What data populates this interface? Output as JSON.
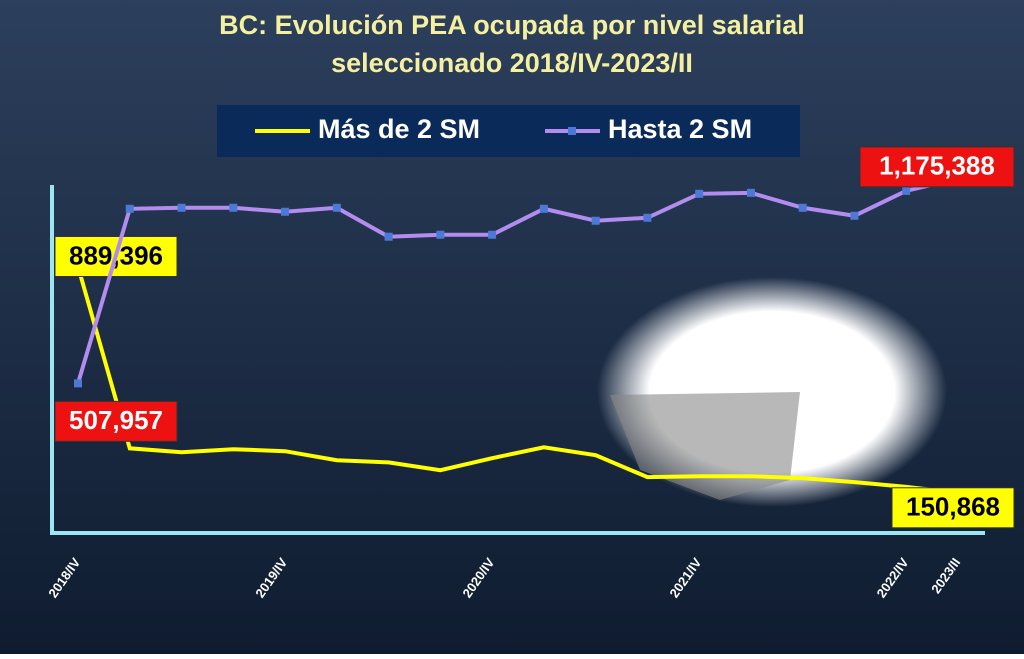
{
  "chart_data": {
    "type": "line",
    "title": "BC: Evolución PEA ocupada por nivel salarial",
    "subtitle": "seleccionado 2018/IV-2023/II",
    "categories": [
      "2018/IV",
      null,
      null,
      null,
      "2019/IV",
      null,
      null,
      null,
      "2020/IV",
      null,
      null,
      null,
      "2021/IV",
      null,
      null,
      null,
      "2022/IV",
      "2023/II"
    ],
    "ylim": [
      0,
      1250000
    ],
    "legend": "top",
    "series": [
      {
        "name": "Más de 2 SM",
        "color": "#ffff00",
        "label_box": "#ffff00",
        "label_text": "#000000",
        "values": [
          889396,
          296000,
          283000,
          293000,
          286500,
          257000,
          250000,
          224600,
          263700,
          299500,
          273500,
          202000,
          205000,
          205000,
          198600,
          185600,
          170000,
          150868
        ],
        "value_labels": [
          "889,396",
          null,
          null,
          null,
          null,
          null,
          null,
          null,
          null,
          null,
          null,
          null,
          null,
          null,
          null,
          null,
          null,
          "150,868"
        ]
      },
      {
        "name": "Hasta 2 SM",
        "color": "#b38cf0",
        "label_box": "#ee1111",
        "label_text": "#ffffff",
        "marker": "#4d79d6",
        "values": [
          507957,
          1077700,
          1081000,
          1081000,
          1068000,
          1081000,
          986600,
          993000,
          993000,
          1077700,
          1038700,
          1048400,
          1126600,
          1129800,
          1081000,
          1055000,
          1136300,
          1175388
        ],
        "value_labels": [
          "507,957",
          null,
          null,
          null,
          null,
          null,
          null,
          null,
          null,
          null,
          null,
          null,
          null,
          null,
          null,
          null,
          null,
          "1,175,388"
        ]
      }
    ]
  }
}
